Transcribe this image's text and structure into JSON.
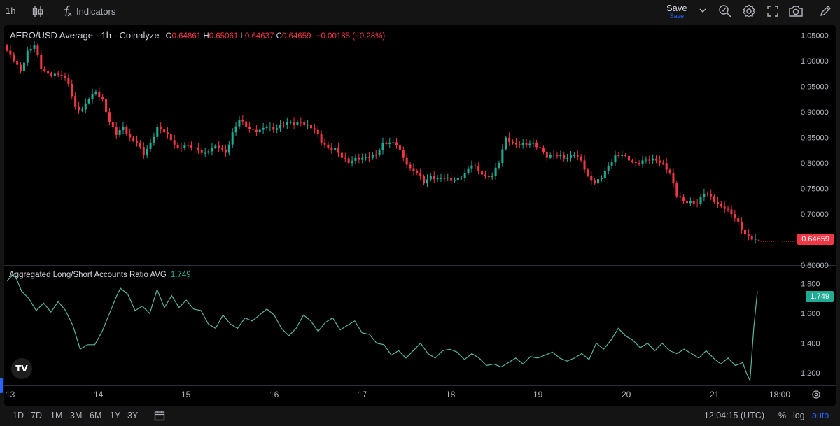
{
  "toolbar": {
    "interval": "1h",
    "indicators_label": "Indicators",
    "save_label": "Save",
    "save_sub": "Save"
  },
  "main_legend": {
    "symbol": "AERO/USD Average · 1h · Coinalyze",
    "o_key": "O",
    "o_val": "0.64861",
    "h_key": "H",
    "h_val": "0.65061",
    "l_key": "L",
    "l_val": "0.64637",
    "c_key": "C",
    "c_val": "0.64659",
    "change": "−0.00185 (−0.28%)"
  },
  "sub_legend": {
    "name": "Aggregated Long/Short Accounts Ratio AVG",
    "value": "1.749"
  },
  "price_tag": "0.64659",
  "ratio_tag": "1.749",
  "colors": {
    "up": "#22ab94",
    "down": "#f23645",
    "ratio_line": "#5ab4a3",
    "background": "#000000"
  },
  "bottombar": {
    "ranges": [
      "1D",
      "7D",
      "1M",
      "3M",
      "6M",
      "1Y",
      "3Y"
    ],
    "time": "12:04:15 (UTC)",
    "percent": "%",
    "log": "log",
    "auto": "auto"
  },
  "chart_data": [
    {
      "type": "candlestick",
      "title": "AERO/USD Average · 1h · Coinalyze",
      "x_ticks": [
        "13",
        "14",
        "15",
        "16",
        "17",
        "18",
        "19",
        "20",
        "21",
        "18:00"
      ],
      "y_ticks": [
        "1.05000",
        "1.00000",
        "0.95000",
        "0.90000",
        "0.85000",
        "0.80000",
        "0.75000",
        "0.70000",
        "0.65000",
        "0.60000"
      ],
      "ylim": [
        0.6,
        1.07
      ],
      "anchor_closes": [
        [
          0,
          1.02
        ],
        [
          2,
          1.0
        ],
        [
          4,
          0.98
        ],
        [
          6,
          1.02
        ],
        [
          8,
          1.03
        ],
        [
          10,
          0.985
        ],
        [
          12,
          0.975
        ],
        [
          14,
          0.975
        ],
        [
          16,
          0.97
        ],
        [
          18,
          0.955
        ],
        [
          20,
          0.91
        ],
        [
          22,
          0.905
        ],
        [
          24,
          0.925
        ],
        [
          26,
          0.94
        ],
        [
          28,
          0.925
        ],
        [
          30,
          0.88
        ],
        [
          32,
          0.855
        ],
        [
          34,
          0.87
        ],
        [
          36,
          0.85
        ],
        [
          38,
          0.84
        ],
        [
          40,
          0.815
        ],
        [
          42,
          0.84
        ],
        [
          44,
          0.87
        ],
        [
          46,
          0.86
        ],
        [
          48,
          0.845
        ],
        [
          50,
          0.83
        ],
        [
          52,
          0.835
        ],
        [
          54,
          0.83
        ],
        [
          56,
          0.825
        ],
        [
          58,
          0.82
        ],
        [
          60,
          0.83
        ],
        [
          62,
          0.83
        ],
        [
          64,
          0.82
        ],
        [
          66,
          0.86
        ],
        [
          68,
          0.885
        ],
        [
          70,
          0.87
        ],
        [
          72,
          0.865
        ],
        [
          74,
          0.865
        ],
        [
          76,
          0.87
        ],
        [
          78,
          0.865
        ],
        [
          80,
          0.875
        ],
        [
          82,
          0.88
        ],
        [
          84,
          0.875
        ],
        [
          86,
          0.88
        ],
        [
          88,
          0.875
        ],
        [
          90,
          0.865
        ],
        [
          92,
          0.84
        ],
        [
          94,
          0.83
        ],
        [
          96,
          0.83
        ],
        [
          98,
          0.81
        ],
        [
          100,
          0.8
        ],
        [
          102,
          0.81
        ],
        [
          104,
          0.81
        ],
        [
          106,
          0.81
        ],
        [
          108,
          0.815
        ],
        [
          110,
          0.84
        ],
        [
          112,
          0.84
        ],
        [
          114,
          0.835
        ],
        [
          116,
          0.81
        ],
        [
          118,
          0.79
        ],
        [
          120,
          0.78
        ],
        [
          122,
          0.76
        ],
        [
          124,
          0.775
        ],
        [
          126,
          0.77
        ],
        [
          128,
          0.77
        ],
        [
          130,
          0.765
        ],
        [
          132,
          0.77
        ],
        [
          134,
          0.78
        ],
        [
          136,
          0.795
        ],
        [
          138,
          0.785
        ],
        [
          140,
          0.775
        ],
        [
          142,
          0.775
        ],
        [
          144,
          0.8
        ],
        [
          146,
          0.85
        ],
        [
          148,
          0.84
        ],
        [
          150,
          0.835
        ],
        [
          152,
          0.835
        ],
        [
          154,
          0.84
        ],
        [
          156,
          0.83
        ],
        [
          158,
          0.81
        ],
        [
          160,
          0.815
        ],
        [
          162,
          0.815
        ],
        [
          164,
          0.81
        ],
        [
          166,
          0.815
        ],
        [
          168,
          0.805
        ],
        [
          170,
          0.775
        ],
        [
          172,
          0.76
        ],
        [
          174,
          0.77
        ],
        [
          176,
          0.795
        ],
        [
          178,
          0.815
        ],
        [
          180,
          0.815
        ],
        [
          182,
          0.805
        ],
        [
          184,
          0.8
        ],
        [
          186,
          0.805
        ],
        [
          188,
          0.805
        ],
        [
          190,
          0.805
        ],
        [
          192,
          0.8
        ],
        [
          194,
          0.78
        ],
        [
          196,
          0.735
        ],
        [
          198,
          0.725
        ],
        [
          200,
          0.725
        ],
        [
          202,
          0.72
        ],
        [
          204,
          0.74
        ],
        [
          206,
          0.735
        ],
        [
          208,
          0.72
        ],
        [
          210,
          0.71
        ],
        [
          212,
          0.7
        ],
        [
          214,
          0.685
        ],
        [
          216,
          0.66
        ],
        [
          218,
          0.65
        ],
        [
          220,
          0.6466
        ]
      ],
      "last": {
        "open": 0.64861,
        "high": 0.65061,
        "low": 0.64637,
        "close": 0.64659
      }
    },
    {
      "type": "line",
      "title": "Aggregated Long/Short Accounts Ratio AVG",
      "y_ticks": [
        "1.800",
        "1.600",
        "1.400",
        "1.200"
      ],
      "ylim": [
        1.13,
        1.86
      ],
      "series": [
        {
          "name": "Aggregated Long/Short Accounts Ratio AVG",
          "points": [
            [
              0,
              1.82
            ],
            [
              4,
              1.87
            ],
            [
              8,
              1.75
            ],
            [
              12,
              1.7
            ],
            [
              16,
              1.62
            ],
            [
              20,
              1.67
            ],
            [
              24,
              1.61
            ],
            [
              28,
              1.68
            ],
            [
              32,
              1.62
            ],
            [
              36,
              1.52
            ],
            [
              40,
              1.36
            ],
            [
              44,
              1.39
            ],
            [
              48,
              1.39
            ],
            [
              52,
              1.48
            ],
            [
              56,
              1.6
            ],
            [
              60,
              1.72
            ],
            [
              62,
              1.77
            ],
            [
              66,
              1.73
            ],
            [
              70,
              1.62
            ],
            [
              74,
              1.65
            ],
            [
              78,
              1.6
            ],
            [
              82,
              1.76
            ],
            [
              86,
              1.64
            ],
            [
              90,
              1.72
            ],
            [
              94,
              1.64
            ],
            [
              98,
              1.69
            ],
            [
              102,
              1.63
            ],
            [
              106,
              1.62
            ],
            [
              110,
              1.53
            ],
            [
              114,
              1.5
            ],
            [
              118,
              1.59
            ],
            [
              122,
              1.53
            ],
            [
              126,
              1.5
            ],
            [
              130,
              1.57
            ],
            [
              134,
              1.55
            ],
            [
              138,
              1.59
            ],
            [
              142,
              1.63
            ],
            [
              146,
              1.59
            ],
            [
              150,
              1.5
            ],
            [
              154,
              1.45
            ],
            [
              158,
              1.5
            ],
            [
              162,
              1.59
            ],
            [
              166,
              1.55
            ],
            [
              170,
              1.48
            ],
            [
              174,
              1.54
            ],
            [
              178,
              1.57
            ],
            [
              182,
              1.49
            ],
            [
              186,
              1.52
            ],
            [
              190,
              1.55
            ],
            [
              194,
              1.47
            ],
            [
              198,
              1.46
            ],
            [
              202,
              1.4
            ],
            [
              206,
              1.39
            ],
            [
              210,
              1.32
            ],
            [
              214,
              1.35
            ],
            [
              218,
              1.3
            ],
            [
              222,
              1.35
            ],
            [
              226,
              1.4
            ],
            [
              230,
              1.33
            ],
            [
              234,
              1.3
            ],
            [
              238,
              1.35
            ],
            [
              242,
              1.36
            ],
            [
              246,
              1.34
            ],
            [
              250,
              1.29
            ],
            [
              254,
              1.33
            ],
            [
              258,
              1.3
            ],
            [
              262,
              1.25
            ],
            [
              266,
              1.26
            ],
            [
              270,
              1.24
            ],
            [
              274,
              1.27
            ],
            [
              278,
              1.3
            ],
            [
              282,
              1.26
            ],
            [
              286,
              1.31
            ],
            [
              290,
              1.3
            ],
            [
              294,
              1.32
            ],
            [
              298,
              1.34
            ],
            [
              302,
              1.3
            ],
            [
              306,
              1.28
            ],
            [
              310,
              1.3
            ],
            [
              314,
              1.33
            ],
            [
              318,
              1.29
            ],
            [
              322,
              1.4
            ],
            [
              326,
              1.36
            ],
            [
              330,
              1.42
            ],
            [
              334,
              1.5
            ],
            [
              338,
              1.45
            ],
            [
              342,
              1.42
            ],
            [
              346,
              1.37
            ],
            [
              350,
              1.4
            ],
            [
              354,
              1.35
            ],
            [
              358,
              1.4
            ],
            [
              362,
              1.35
            ],
            [
              366,
              1.33
            ],
            [
              370,
              1.36
            ],
            [
              374,
              1.33
            ],
            [
              378,
              1.3
            ],
            [
              382,
              1.35
            ],
            [
              386,
              1.3
            ],
            [
              390,
              1.26
            ],
            [
              394,
              1.3
            ],
            [
              398,
              1.25
            ],
            [
              402,
              1.27
            ],
            [
              404,
              1.2
            ],
            [
              406,
              1.15
            ],
            [
              408,
              1.5
            ],
            [
              410,
              1.749
            ]
          ]
        }
      ]
    }
  ]
}
